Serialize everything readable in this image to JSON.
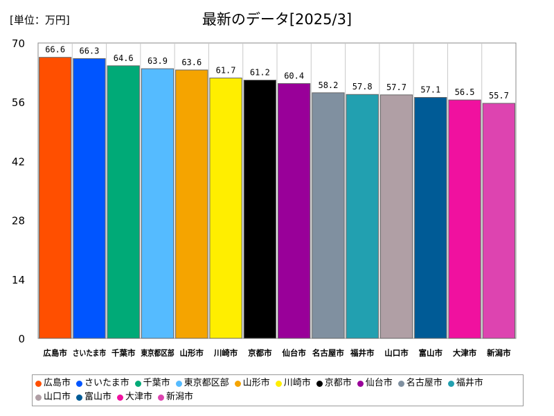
{
  "unit_label": "[単位：万円]",
  "title": "最新のデータ[2025/3]",
  "chart_data": {
    "type": "bar",
    "categories": [
      "広島市",
      "さいたま市",
      "千葉市",
      "東京都区部",
      "山形市",
      "川崎市",
      "京都市",
      "仙台市",
      "名古屋市",
      "福井市",
      "山口市",
      "富山市",
      "大津市",
      "新潟市"
    ],
    "values": [
      66.6,
      66.3,
      64.6,
      63.9,
      63.6,
      61.7,
      61.2,
      60.4,
      58.2,
      57.8,
      57.7,
      57.1,
      56.5,
      55.7
    ],
    "value_labels": [
      "66.6",
      "66.3",
      "64.6",
      "63.9",
      "63.6",
      "61.7",
      "61.2",
      "60.4",
      "58.2",
      "57.8",
      "57.7",
      "57.1",
      "56.5",
      "55.7"
    ],
    "colors": [
      "#ff4f00",
      "#0055ff",
      "#00aa77",
      "#55bbff",
      "#f5a400",
      "#ffee00",
      "#000000",
      "#990099",
      "#8090a0",
      "#22a0b0",
      "#b09fa5",
      "#005b96",
      "#f0119f",
      "#dd44b0"
    ],
    "yticks": [
      0,
      14,
      28,
      42,
      56,
      70
    ],
    "ylim": [
      0,
      70
    ],
    "legend_position": "bottom",
    "grid": false
  }
}
